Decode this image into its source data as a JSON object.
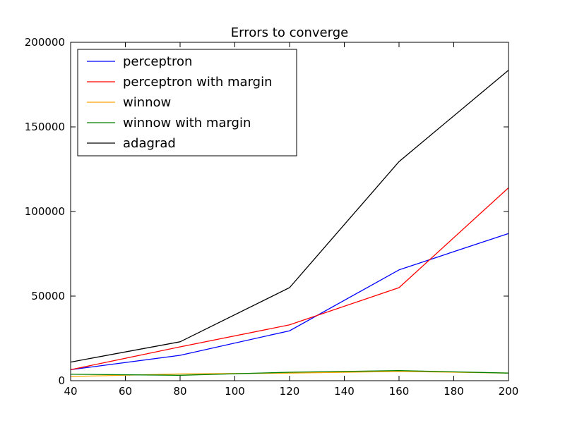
{
  "chart_data": {
    "type": "line",
    "title": "Errors to converge",
    "xlabel": "",
    "ylabel": "",
    "xlim": [
      40,
      200
    ],
    "ylim": [
      0,
      200000
    ],
    "xticks": [
      40,
      60,
      80,
      100,
      120,
      140,
      160,
      180,
      200
    ],
    "yticks": [
      0,
      50000,
      100000,
      150000,
      200000
    ],
    "grid": false,
    "legend_position": "top-left",
    "x": [
      40,
      80,
      120,
      160,
      200
    ],
    "series": [
      {
        "name": "perceptron",
        "color": "#0000ff",
        "values": [
          6500,
          15000,
          29500,
          65500,
          87000
        ]
      },
      {
        "name": "perceptron with margin",
        "color": "#ff0000",
        "values": [
          6500,
          20000,
          33000,
          55000,
          114000
        ]
      },
      {
        "name": "winnow",
        "color": "#ffa500",
        "values": [
          2500,
          4000,
          4500,
          5500,
          4500
        ]
      },
      {
        "name": "winnow with margin",
        "color": "#008000",
        "values": [
          3800,
          3200,
          5000,
          6000,
          4500
        ]
      },
      {
        "name": "adagrad",
        "color": "#000000",
        "values": [
          11000,
          23000,
          55000,
          129500,
          183500
        ]
      }
    ]
  }
}
